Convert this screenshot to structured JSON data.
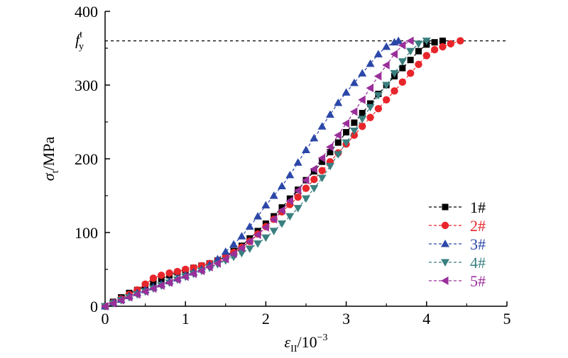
{
  "chart_data": {
    "type": "line",
    "xlabel": {
      "symbol": "ε",
      "subscript": "II",
      "unit": "/10",
      "exponent": "−3"
    },
    "ylabel": {
      "symbol": "σ",
      "subscript": "t",
      "unit": "/MPa"
    },
    "xlim": [
      0,
      5
    ],
    "ylim": [
      0,
      400
    ],
    "xticks": [
      "0",
      "1",
      "2",
      "3",
      "4",
      "5"
    ],
    "yticks": [
      "0",
      "100",
      "200",
      "300",
      "400"
    ],
    "grid": false,
    "legend_position": "right",
    "reference_line": {
      "label_base": "f",
      "label_sup": "t",
      "label_sub": "y",
      "y": 360
    },
    "series": [
      {
        "name": "1#",
        "color": "#000000",
        "marker": "square",
        "x": [
          0,
          0.1,
          0.2,
          0.3,
          0.4,
          0.5,
          0.6,
          0.7,
          0.8,
          0.9,
          1.0,
          1.1,
          1.2,
          1.3,
          1.4,
          1.5,
          1.6,
          1.7,
          1.8,
          1.9,
          2.0,
          2.1,
          2.2,
          2.3,
          2.4,
          2.5,
          2.6,
          2.7,
          2.8,
          2.9,
          3.0,
          3.1,
          3.2,
          3.3,
          3.4,
          3.5,
          3.6,
          3.7,
          3.8,
          3.9,
          4.0,
          4.1,
          4.2
        ],
        "y": [
          0,
          6,
          12,
          18,
          22,
          27,
          32,
          37,
          42,
          46,
          49,
          52,
          55,
          58,
          62,
          68,
          75,
          82,
          92,
          102,
          112,
          122,
          134,
          146,
          158,
          171,
          183,
          196,
          209,
          222,
          236,
          249,
          262,
          275,
          288,
          300,
          312,
          323,
          334,
          346,
          355,
          358,
          360
        ]
      },
      {
        "name": "2#",
        "color": "#e8252b",
        "marker": "circle",
        "x": [
          0,
          0.1,
          0.2,
          0.3,
          0.4,
          0.5,
          0.6,
          0.7,
          0.8,
          0.9,
          1.0,
          1.1,
          1.2,
          1.3,
          1.4,
          1.5,
          1.6,
          1.7,
          1.8,
          1.9,
          2.0,
          2.1,
          2.2,
          2.3,
          2.4,
          2.5,
          2.6,
          2.7,
          2.8,
          2.9,
          3.0,
          3.1,
          3.2,
          3.3,
          3.4,
          3.5,
          3.6,
          3.7,
          3.8,
          3.9,
          4.0,
          4.1,
          4.2,
          4.3,
          4.42
        ],
        "y": [
          0,
          5,
          10,
          16,
          22,
          30,
          38,
          42,
          45,
          47,
          50,
          52,
          55,
          58,
          62,
          67,
          73,
          80,
          88,
          98,
          108,
          118,
          128,
          138,
          148,
          160,
          172,
          184,
          196,
          208,
          220,
          232,
          244,
          256,
          268,
          280,
          292,
          304,
          316,
          328,
          340,
          348,
          352,
          356,
          360
        ]
      },
      {
        "name": "3#",
        "color": "#2b47a8",
        "marker": "triangle-up",
        "x": [
          0,
          0.1,
          0.2,
          0.3,
          0.4,
          0.5,
          0.6,
          0.7,
          0.8,
          0.9,
          1.0,
          1.1,
          1.2,
          1.3,
          1.4,
          1.5,
          1.6,
          1.7,
          1.8,
          1.9,
          2.0,
          2.1,
          2.2,
          2.3,
          2.4,
          2.5,
          2.6,
          2.7,
          2.8,
          2.9,
          3.0,
          3.1,
          3.2,
          3.3,
          3.4,
          3.5,
          3.6,
          3.65
        ],
        "y": [
          0,
          5,
          9,
          14,
          18,
          22,
          26,
          30,
          34,
          38,
          42,
          46,
          50,
          56,
          64,
          74,
          84,
          95,
          108,
          122,
          137,
          150,
          163,
          178,
          195,
          212,
          228,
          244,
          260,
          276,
          290,
          303,
          316,
          329,
          342,
          352,
          358,
          360
        ]
      },
      {
        "name": "4#",
        "color": "#3a7f7f",
        "marker": "triangle-down",
        "x": [
          0,
          0.1,
          0.2,
          0.3,
          0.4,
          0.5,
          0.6,
          0.7,
          0.8,
          0.9,
          1.0,
          1.1,
          1.2,
          1.3,
          1.4,
          1.5,
          1.6,
          1.7,
          1.8,
          1.9,
          2.0,
          2.1,
          2.2,
          2.3,
          2.4,
          2.5,
          2.6,
          2.7,
          2.8,
          2.9,
          3.0,
          3.1,
          3.2,
          3.3,
          3.4,
          3.5,
          3.6,
          3.7,
          3.8,
          3.9,
          4.0
        ],
        "y": [
          0,
          4,
          8,
          12,
          16,
          20,
          24,
          28,
          32,
          36,
          40,
          44,
          48,
          52,
          57,
          62,
          67,
          72,
          78,
          85,
          93,
          102,
          112,
          122,
          133,
          146,
          160,
          174,
          190,
          206,
          222,
          238,
          254,
          270,
          286,
          300,
          316,
          332,
          346,
          356,
          360
        ]
      },
      {
        "name": "5#",
        "color": "#9a2f9a",
        "marker": "triangle-left",
        "x": [
          0,
          0.1,
          0.2,
          0.3,
          0.4,
          0.5,
          0.6,
          0.7,
          0.8,
          0.9,
          1.0,
          1.1,
          1.2,
          1.3,
          1.4,
          1.5,
          1.6,
          1.7,
          1.8,
          1.9,
          2.0,
          2.1,
          2.2,
          2.3,
          2.4,
          2.5,
          2.6,
          2.7,
          2.8,
          2.9,
          3.0,
          3.1,
          3.2,
          3.3,
          3.4,
          3.5,
          3.6,
          3.7,
          3.8
        ],
        "y": [
          0,
          4,
          8,
          12,
          16,
          20,
          24,
          28,
          32,
          36,
          40,
          44,
          48,
          53,
          58,
          64,
          71,
          79,
          88,
          97,
          107,
          118,
          130,
          143,
          157,
          171,
          186,
          201,
          216,
          232,
          248,
          264,
          280,
          296,
          312,
          327,
          342,
          354,
          360
        ]
      }
    ]
  }
}
